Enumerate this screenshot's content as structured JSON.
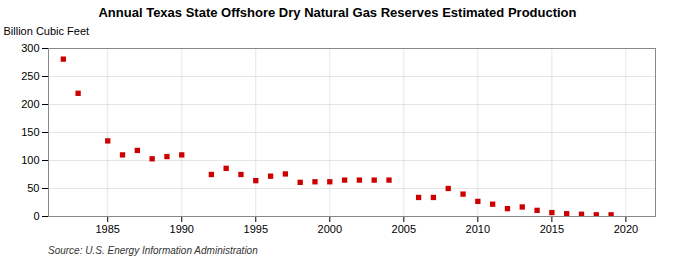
{
  "chart_data": {
    "type": "scatter",
    "title": "Annual Texas State Offshore Dry Natural Gas Reserves Estimated Production",
    "y_label": "Billion Cubic Feet",
    "source": "Source: U.S. Energy Information Administration",
    "x": [
      1982,
      1983,
      1985,
      1986,
      1987,
      1988,
      1989,
      1990,
      1992,
      1993,
      1994,
      1995,
      1996,
      1997,
      1998,
      1999,
      2000,
      2001,
      2002,
      2003,
      2004,
      2006,
      2007,
      2008,
      2009,
      2010,
      2011,
      2012,
      2013,
      2014,
      2015,
      2016,
      2017,
      2018,
      2019
    ],
    "values": [
      281,
      220,
      135,
      110,
      118,
      103,
      107,
      110,
      75,
      86,
      75,
      64,
      72,
      76,
      61,
      62,
      62,
      65,
      65,
      65,
      65,
      34,
      34,
      50,
      40,
      27,
      22,
      14,
      17,
      11,
      7,
      5,
      4,
      3,
      3
    ],
    "color": "#cc0000",
    "marker": "square",
    "xlim": [
      1981,
      2022
    ],
    "xticks": [
      1985,
      1990,
      1995,
      2000,
      2005,
      2010,
      2015,
      2020
    ],
    "ylim": [
      0,
      300
    ],
    "yticks": [
      0,
      50,
      100,
      150,
      200,
      250,
      300
    ],
    "grid": true
  }
}
